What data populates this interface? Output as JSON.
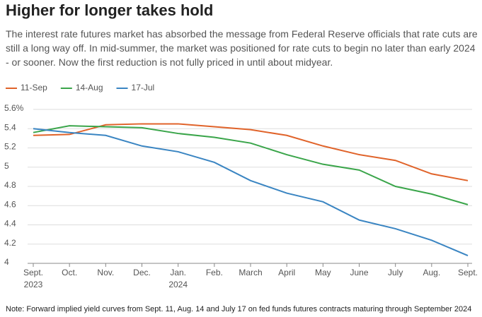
{
  "chart_data": {
    "type": "line",
    "title": "Higher for longer takes hold",
    "subtitle": "The interest rate futures market has absorbed the message from Federal Reserve officials that rate cuts are still a long way off. In mid-summer, the market was positioned for rate cuts to begin no later than early 2024 - or sooner. Now the first reduction is not fully priced in until about midyear.",
    "categories": [
      "Sept.",
      "Oct.",
      "Nov.",
      "Dec.",
      "Jan.",
      "Feb.",
      "March",
      "April",
      "May",
      "June",
      "July",
      "Aug.",
      "Sept."
    ],
    "category_years": [
      "2023",
      null,
      null,
      null,
      "2024",
      null,
      null,
      null,
      null,
      null,
      null,
      null,
      null
    ],
    "series": [
      {
        "name": "11-Sep",
        "color": "#e0632a",
        "values": [
          5.33,
          5.34,
          5.44,
          5.45,
          5.45,
          5.42,
          5.39,
          5.33,
          5.22,
          5.13,
          5.07,
          4.93,
          4.86
        ]
      },
      {
        "name": "14-Aug",
        "color": "#3aa54a",
        "values": [
          5.36,
          5.43,
          5.42,
          5.41,
          5.35,
          5.31,
          5.25,
          5.13,
          5.03,
          4.97,
          4.8,
          4.72,
          4.61
        ]
      },
      {
        "name": "17-Jul",
        "color": "#3a85c2",
        "values": [
          5.4,
          5.36,
          5.33,
          5.22,
          5.16,
          5.05,
          4.86,
          4.73,
          4.64,
          4.45,
          4.36,
          4.24,
          4.08
        ]
      }
    ],
    "ylim": [
      4,
      5.6
    ],
    "yticks": [
      4,
      4.2,
      4.4,
      4.6,
      4.8,
      5,
      5.2,
      5.4,
      {
        "value": 5.6,
        "label": "5.6%"
      }
    ],
    "grid": true,
    "note": "Note: Forward implied yield curves from Sept. 11, Aug. 14 and July 17 on fed funds futures contracts maturing through September 2024"
  }
}
